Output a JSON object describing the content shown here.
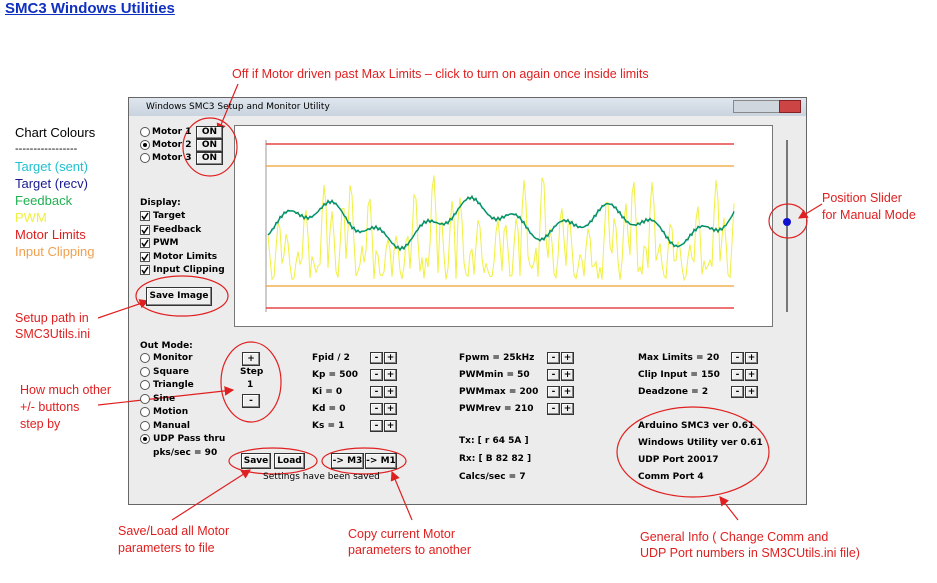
{
  "title": "SMC3 Windows Utilities",
  "legend": {
    "heading": "Chart Colours",
    "rule": "-----------------",
    "items": [
      "Target (sent)",
      "Target (recv)",
      "Feedback",
      "PWM",
      "Motor Limits",
      "Input Clipping"
    ]
  },
  "window": {
    "title": "Windows SMC3 Setup and Monitor Utility",
    "motors": [
      {
        "label": "Motor 1",
        "button": "ON"
      },
      {
        "label": "Motor 2",
        "button": "ON"
      },
      {
        "label": "Motor 3",
        "button": "ON"
      }
    ],
    "display": {
      "heading": "Display:",
      "options": [
        "Target",
        "Feedback",
        "PWM",
        "Motor Limits",
        "Input Clipping"
      ]
    },
    "save_image": "Save Image",
    "out_mode": {
      "heading": "Out Mode:",
      "options": [
        "Monitor",
        "Square",
        "Triangle",
        "Sine",
        "Motion",
        "Manual",
        "UDP Pass thru"
      ],
      "rate": "pks/sec = 90"
    },
    "step": {
      "plus": "+",
      "label": "Step",
      "value": "1",
      "minus": "-"
    },
    "params": [
      [
        "Fpid / 2",
        "Kp = 500",
        "Ki = 0",
        "Kd = 0",
        "Ks = 1"
      ],
      [
        "Fpwm = 25kHz",
        "PWMmin = 50",
        "PWMmax = 200",
        "PWMrev = 210"
      ],
      [
        "Max Limits = 20",
        "Clip Input = 150",
        "Deadzone = 2"
      ]
    ],
    "comms": [
      "Tx: [ r 64 5A ]",
      "Rx: [ B 82 82 ]",
      "Calcs/sec = 7"
    ],
    "info": [
      "Arduino SMC3 ver 0.61",
      "Windows Utility ver 0.61",
      "UDP Port 20017",
      "Comm Port 4"
    ],
    "buttons": [
      "Save",
      "Load",
      "-> M3",
      "-> M1"
    ],
    "status": "Settings have been saved"
  },
  "annotations": {
    "limits": "Off if Motor driven past Max Limits – click to turn on again once inside limits",
    "slider": [
      "Position Slider",
      "for Manual Mode"
    ],
    "setup": [
      "Setup path in",
      "SMC3Utils.ini"
    ],
    "step": [
      "How much other",
      "+/- buttons",
      "step by"
    ],
    "save_load": [
      "Save/Load all Motor",
      "parameters to file"
    ],
    "copy": [
      "Copy current Motor",
      "parameters to another"
    ],
    "info": [
      "General Info ( Change Comm and",
      "UDP Port numbers in SM3CUtils.ini file)"
    ]
  }
}
